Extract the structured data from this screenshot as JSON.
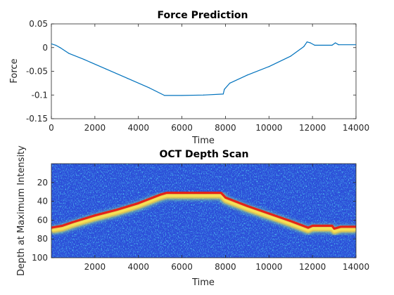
{
  "chart_data": [
    {
      "type": "line",
      "title": "Force Prediction",
      "xlabel": "Time",
      "ylabel": "Force",
      "xlim": [
        0,
        14000
      ],
      "ylim": [
        -0.15,
        0.05
      ],
      "xticks": [
        "0",
        "2000",
        "4000",
        "6000",
        "8000",
        "10000",
        "12000",
        "14000"
      ],
      "yticks": [
        "0.05",
        "0",
        "-0.05",
        "-0.1",
        "-0.15"
      ],
      "grid": false,
      "line_color": "#0072bd",
      "series": [
        {
          "x": [
            0,
            200,
            400,
            800,
            1500,
            2500,
            3500,
            4500,
            5200,
            6000,
            7000,
            7900,
            7950,
            8200,
            9000,
            10000,
            11000,
            11600,
            11750,
            11900,
            12100,
            12900,
            13050,
            13200,
            14000
          ],
          "y": [
            0.008,
            0.005,
            0.0,
            -0.012,
            -0.025,
            -0.045,
            -0.065,
            -0.085,
            -0.101,
            -0.101,
            -0.1,
            -0.098,
            -0.088,
            -0.075,
            -0.058,
            -0.04,
            -0.018,
            0.002,
            0.012,
            0.01,
            0.005,
            0.005,
            0.01,
            0.006,
            0.006
          ]
        }
      ]
    },
    {
      "type": "heatmap",
      "title": "OCT Depth Scan",
      "xlabel": "Time",
      "ylabel": "Depth at Maximum Intensity",
      "xlim": [
        0,
        14000
      ],
      "ylim": [
        100,
        0
      ],
      "xticks": [
        "2000",
        "4000",
        "6000",
        "8000",
        "10000",
        "12000",
        "14000"
      ],
      "yticks": [
        "20",
        "40",
        "60",
        "80",
        "100"
      ],
      "background_color": "#2c4fd8",
      "highlight_colors": [
        "#ffd23c",
        "#f5e25a",
        "#7fd8a0"
      ],
      "trace_color": "#e2231a",
      "series": [
        {
          "x": [
            0,
            500,
            1000,
            2000,
            3000,
            4000,
            5000,
            5300,
            6000,
            7000,
            7800,
            8000,
            9000,
            10000,
            11000,
            11800,
            12000,
            12500,
            12900,
            13000,
            13300,
            14000
          ],
          "y": [
            68,
            66,
            62,
            55,
            49,
            42,
            33,
            31,
            31,
            31,
            31,
            36,
            45,
            53,
            61,
            68,
            66,
            66,
            66,
            69,
            67,
            67
          ]
        }
      ]
    }
  ]
}
